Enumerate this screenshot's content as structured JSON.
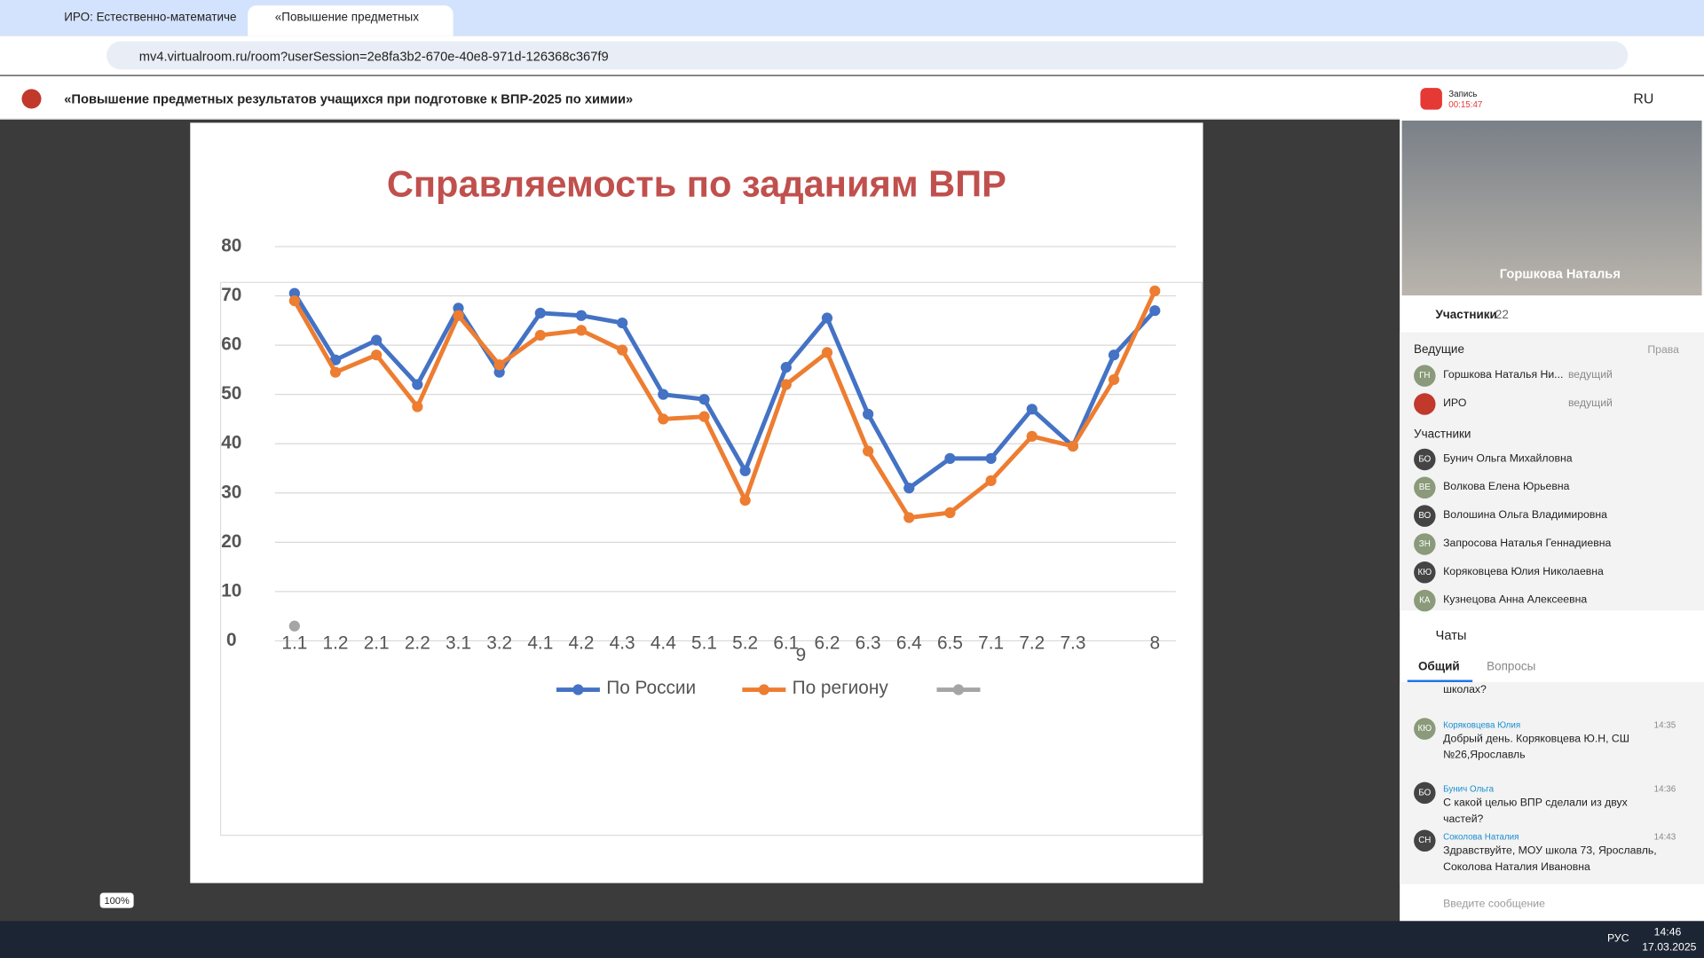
{
  "browser": {
    "tabs": [
      "ИРО: Естественно-математиче",
      "«Повышение предметных"
    ],
    "url": "mv4.virtualroom.ru/room?userSession=2e8fa3b2-670e-40e8-971d-126368c367f9"
  },
  "header": {
    "title": "«Повышение предметных результатов учащихся при подготовке к ВПР-2025 по химии»",
    "record_label": "Запись",
    "record_time": "00:15:47",
    "language": "RU"
  },
  "video": {
    "name": "Горшкова Наталья"
  },
  "participants": {
    "title": "Участники",
    "count": 22,
    "hosts_title": "Ведущие",
    "rights": "Права",
    "hosts": [
      {
        "initials": "ГН",
        "name": "Горшкова Наталья Ни...",
        "role": "ведущий"
      },
      {
        "name": "ИРО",
        "role": "ведущий"
      }
    ],
    "members_title": "Участники",
    "members": [
      {
        "initials": "БО",
        "name": "Бунич Ольга Михайловна"
      },
      {
        "initials": "ВЕ",
        "name": "Волкова Елена Юрьевна"
      },
      {
        "initials": "ВО",
        "name": "Волошина Ольга Владимировна"
      },
      {
        "initials": "ЗН",
        "name": "Запросова Наталья Геннадиевна"
      },
      {
        "initials": "КЮ",
        "name": "Коряковцева Юлия Николаевна"
      },
      {
        "initials": "КА",
        "name": "Кузнецова Анна Алексеевна"
      }
    ]
  },
  "chat": {
    "title": "Чаты",
    "tabs": [
      "Общий",
      "Вопросы"
    ],
    "partial": "школах?",
    "messages": [
      {
        "initials": "КЮ",
        "author": "Коряковцева Юлия",
        "time": "14:35",
        "text": "Добрый день. Коряковцева Ю.Н, СШ №26,Ярославль"
      },
      {
        "initials": "БО",
        "author": "Бунич Ольга",
        "time": "14:36",
        "text": "С какой целью ВПР сделали из двух частей?"
      },
      {
        "initials": "СН",
        "author": "Соколова Наталия",
        "time": "14:43",
        "text": "Здравствуйте, МОУ школа 73, Ярославль, Соколова Наталия Ивановна"
      }
    ],
    "placeholder": "Введите сообщение"
  },
  "zoom": "100%",
  "taskbar": {
    "language": "РУС",
    "time": "14:46",
    "date": "17.03.2025"
  },
  "chart_data": {
    "type": "line",
    "title": "Справляемость по заданиям ВПР",
    "categories": [
      "1.1",
      "1.2",
      "2.1",
      "2.2",
      "3.1",
      "3.2",
      "4.1",
      "4.2",
      "4.3",
      "4.4",
      "5.1",
      "5.2",
      "6.1",
      "6.2",
      "6.3",
      "6.4",
      "6.5",
      "7.1",
      "7.2",
      "7.3",
      null,
      "8"
    ],
    "annotation": "9",
    "series": [
      {
        "name": "По России",
        "color": "#4472c4",
        "values": [
          70.5,
          57,
          61,
          52,
          67.5,
          54.5,
          66.5,
          66,
          64.5,
          50,
          49,
          34.5,
          55.5,
          65.5,
          46,
          31,
          37,
          37,
          47,
          39.5,
          58,
          67
        ]
      },
      {
        "name": "По региону",
        "color": "#ed7d31",
        "values": [
          69,
          54.5,
          58,
          47.5,
          66,
          56,
          62,
          63,
          59,
          45,
          45.5,
          28.5,
          52,
          58.5,
          38.5,
          25,
          26,
          32.5,
          41.5,
          39.5,
          53,
          71
        ]
      },
      {
        "color": "#a5a5a5",
        "values": [
          3,
          null,
          null,
          null,
          null,
          null,
          null,
          null,
          null,
          null,
          null,
          null,
          null,
          null,
          null,
          null,
          null,
          null,
          null,
          null,
          null,
          null
        ]
      }
    ],
    "ylim": [
      0,
      80
    ],
    "yticks": [
      0,
      10,
      20,
      30,
      40,
      50,
      60,
      70,
      80
    ],
    "grid": true
  }
}
